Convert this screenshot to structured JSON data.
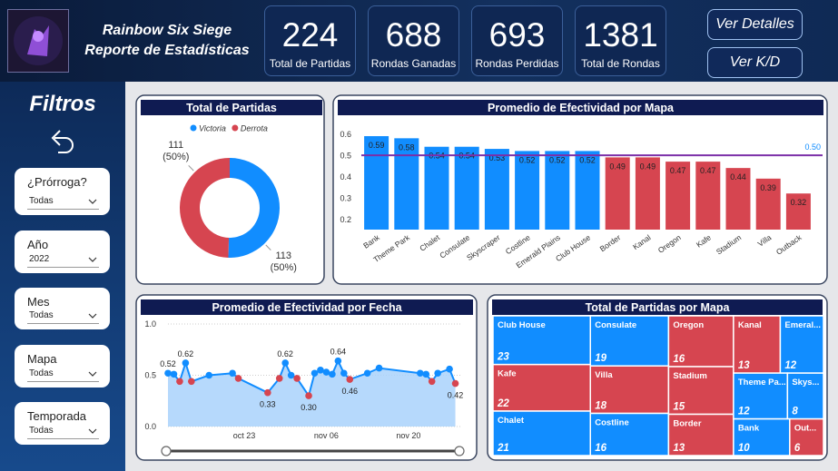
{
  "header": {
    "title": "Rainbow Six Siege",
    "subtitle": "Reporte de Estadísticas"
  },
  "kpis": [
    {
      "value": 224,
      "label": "Total de Partidas"
    },
    {
      "value": 688,
      "label": "Rondas Ganadas"
    },
    {
      "value": 693,
      "label": "Rondas Perdidas"
    },
    {
      "value": 1381,
      "label": "Total de Rondas"
    }
  ],
  "buttons": [
    "Ver Detalles",
    "Ver K/D"
  ],
  "sidebar": {
    "title": "Filtros",
    "filters": [
      {
        "label": "¿Prórroga?",
        "value": "Todas"
      },
      {
        "label": "Año",
        "value": "2022"
      },
      {
        "label": "Mes",
        "value": "Todas"
      },
      {
        "label": "Mapa",
        "value": "Todas"
      },
      {
        "label": "Temporada",
        "value": "Todas"
      }
    ]
  },
  "chart_data": [
    {
      "type": "pie",
      "title": "Total de Partidas",
      "donut": true,
      "categories": [
        "Victoria",
        "Derrota"
      ],
      "values": [
        113,
        111
      ],
      "value_labels": [
        "113 (50%)",
        "111 (50%)"
      ],
      "colors": [
        "#118dff",
        "#d64550"
      ]
    },
    {
      "type": "bar",
      "title": "Promedio de Efectividad por Mapa",
      "categories": [
        "Bank",
        "Theme Park",
        "Chalet",
        "Consulate",
        "Skyscraper",
        "Costline",
        "Emerald Plains",
        "Club House",
        "Border",
        "Kanal",
        "Oregon",
        "Kafe",
        "Stadium",
        "Villa",
        "Outback"
      ],
      "values": [
        0.59,
        0.58,
        0.54,
        0.54,
        0.53,
        0.52,
        0.52,
        0.52,
        0.49,
        0.49,
        0.47,
        0.47,
        0.44,
        0.39,
        0.32
      ],
      "colors": [
        "#118dff",
        "#118dff",
        "#118dff",
        "#118dff",
        "#118dff",
        "#118dff",
        "#118dff",
        "#118dff",
        "#d64550",
        "#d64550",
        "#d64550",
        "#d64550",
        "#d64550",
        "#d64550",
        "#d64550"
      ],
      "ylim": [
        0.15,
        0.62
      ],
      "yticks": [
        0.2,
        0.3,
        0.4,
        0.5,
        0.6
      ],
      "reference_line": {
        "value": 0.5,
        "label": "0.50",
        "color": "#7b2fa8"
      }
    },
    {
      "type": "line",
      "title": "Promedio de Efectividad por Fecha",
      "area": true,
      "x": [
        "oct 10",
        "oct 11",
        "oct 12",
        "oct 13",
        "oct 14",
        "oct 17",
        "oct 21",
        "oct 22",
        "oct 27",
        "oct 29",
        "oct 30",
        "oct 31",
        "nov 01",
        "nov 03",
        "nov 04",
        "nov 05",
        "nov 06",
        "nov 07",
        "nov 08",
        "nov 09",
        "nov 10",
        "nov 13",
        "nov 15",
        "nov 22",
        "nov 23",
        "nov 24",
        "nov 25",
        "nov 27",
        "nov 28"
      ],
      "series": [
        {
          "color": "#118dff",
          "values": [
            0.52,
            0.51,
            0.44,
            0.62,
            0.44,
            0.5,
            0.52,
            0.47,
            0.33,
            0.47,
            0.62,
            0.5,
            0.47,
            0.3,
            0.52,
            0.55,
            0.53,
            0.51,
            0.64,
            0.52,
            0.46,
            0.52,
            0.57,
            0.52,
            0.51,
            0.44,
            0.52,
            0.56,
            0.42
          ],
          "data_labels": [
            "0.52",
            null,
            null,
            "0.62",
            null,
            null,
            null,
            null,
            "0.33",
            null,
            "0.62",
            null,
            null,
            "0.30",
            null,
            null,
            null,
            null,
            "0.64",
            null,
            "0.46",
            null,
            null,
            null,
            null,
            null,
            null,
            null,
            "0.42"
          ],
          "point_colors": [
            "#118dff",
            "#118dff",
            "#d64550",
            "#118dff",
            "#d64550",
            "#118dff",
            "#118dff",
            "#d64550",
            "#d64550",
            "#d64550",
            "#118dff",
            "#118dff",
            "#d64550",
            "#d64550",
            "#118dff",
            "#118dff",
            "#118dff",
            "#118dff",
            "#118dff",
            "#118dff",
            "#d64550",
            "#118dff",
            "#118dff",
            "#118dff",
            "#118dff",
            "#d64550",
            "#118dff",
            "#118dff",
            "#d64550"
          ]
        }
      ],
      "xlim": [
        "oct 10",
        "nov 29"
      ],
      "xticks": [
        "oct 23",
        "nov 06",
        "nov 20"
      ],
      "ylim": [
        0,
        1
      ],
      "yticks": [
        {
          "value": 0,
          "label": "0.0"
        },
        0.5,
        {
          "value": 1,
          "label": "1.0"
        }
      ]
    },
    {
      "type": "treemap",
      "title": "Total de Partidas por Mapa",
      "categories": [
        "Club House",
        "Kafe",
        "Chalet",
        "Consulate",
        "Villa",
        "Costline",
        "Oregon",
        "Stadium",
        "Border",
        "Kanal",
        "Emeral...",
        "Theme Pa...",
        "Skys...",
        "Bank",
        "Out..."
      ],
      "values": [
        23,
        22,
        21,
        19,
        18,
        16,
        16,
        15,
        13,
        13,
        12,
        12,
        8,
        10,
        6
      ],
      "colors": [
        "#118dff",
        "#d64550",
        "#118dff",
        "#118dff",
        "#d64550",
        "#118dff",
        "#d64550",
        "#d64550",
        "#d64550",
        "#d64550",
        "#118dff",
        "#118dff",
        "#118dff",
        "#118dff",
        "#d64550"
      ]
    }
  ]
}
